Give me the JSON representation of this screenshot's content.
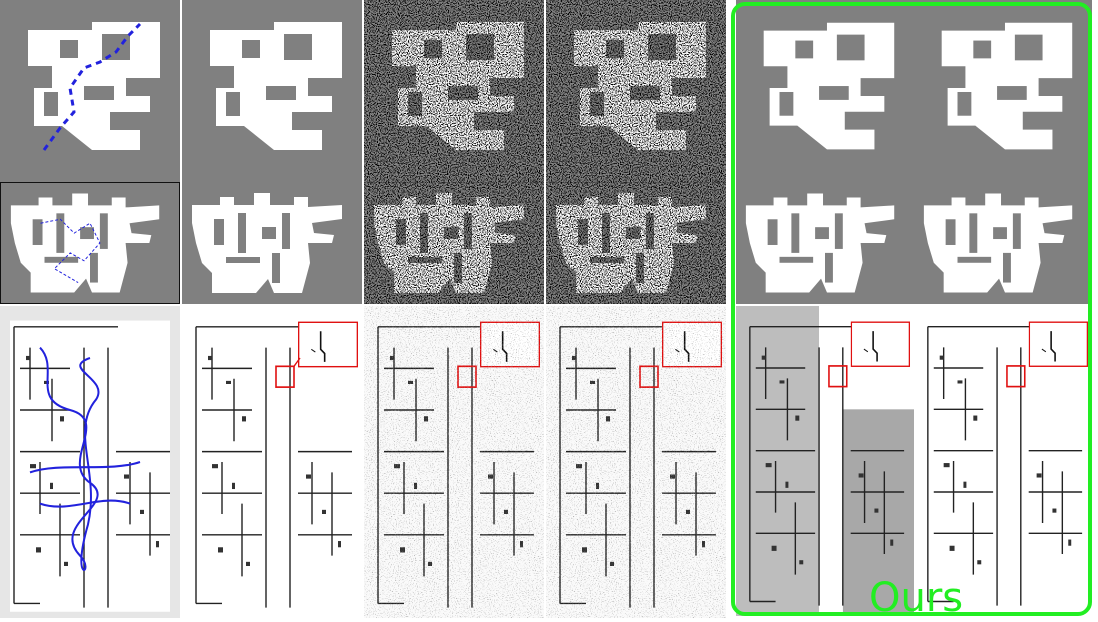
{
  "label": "Ours",
  "colors": {
    "highlight": "#22ee22",
    "inset": "#e01010",
    "path": "#2222dd",
    "background_gray": "#808080"
  }
}
